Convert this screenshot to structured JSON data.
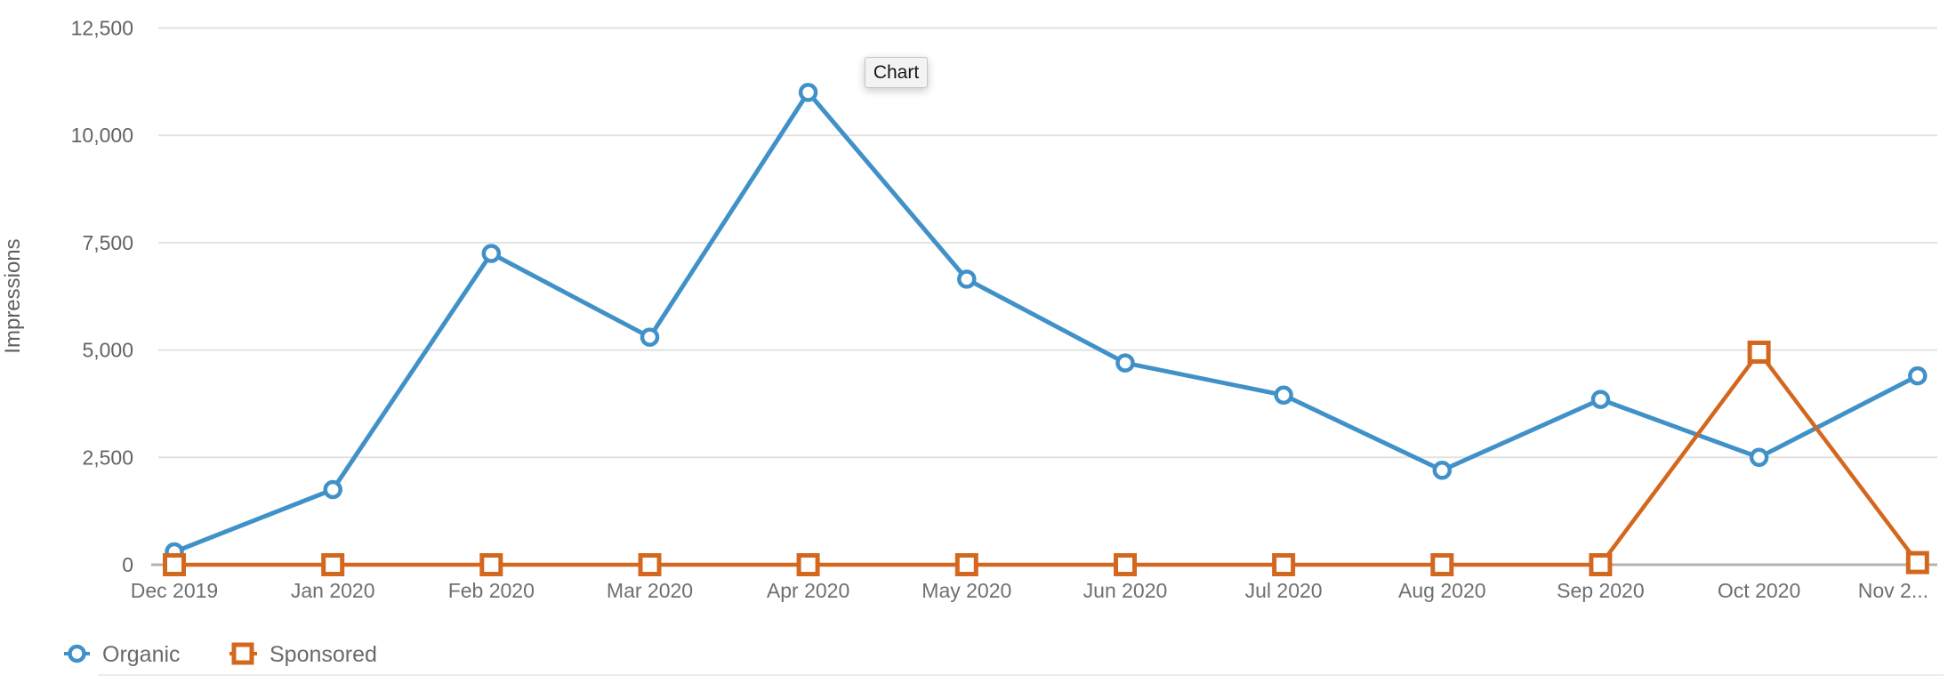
{
  "page": {
    "background": "#ffffff"
  },
  "tooltip": {
    "label": "Chart"
  },
  "chart_data": {
    "type": "line",
    "title": "",
    "xlabel": "",
    "ylabel": "Impressions",
    "x_labels": [
      "Dec 2019",
      "Jan 2020",
      "Feb 2020",
      "Mar 2020",
      "Apr 2020",
      "May 2020",
      "Jun 2020",
      "Jul 2020",
      "Aug 2020",
      "Sep 2020",
      "Oct 2020",
      "Nov 2..."
    ],
    "y_ticks": [
      0,
      2500,
      5000,
      7500,
      10000,
      12500
    ],
    "y_tick_labels": [
      "0",
      "2,500",
      "5,000",
      "7,500",
      "10,000",
      "12,500"
    ],
    "ylim": [
      0,
      12500
    ],
    "grid": "horizontal-only",
    "legend_position": "bottom-left",
    "axis_color": "#b3b3b3",
    "gridline_color": "#e2e2e2",
    "tick_label_color": "#666666",
    "series": [
      {
        "name": "Organic",
        "marker": "circle",
        "color": "#4191c9",
        "values": [
          300,
          1750,
          7250,
          5300,
          11000,
          6650,
          4700,
          3950,
          2200,
          3850,
          2500,
          4400
        ]
      },
      {
        "name": "Sponsored",
        "marker": "square",
        "color": "#d4671e",
        "values": [
          0,
          0,
          0,
          0,
          0,
          0,
          0,
          0,
          0,
          0,
          4950,
          50
        ]
      }
    ]
  }
}
